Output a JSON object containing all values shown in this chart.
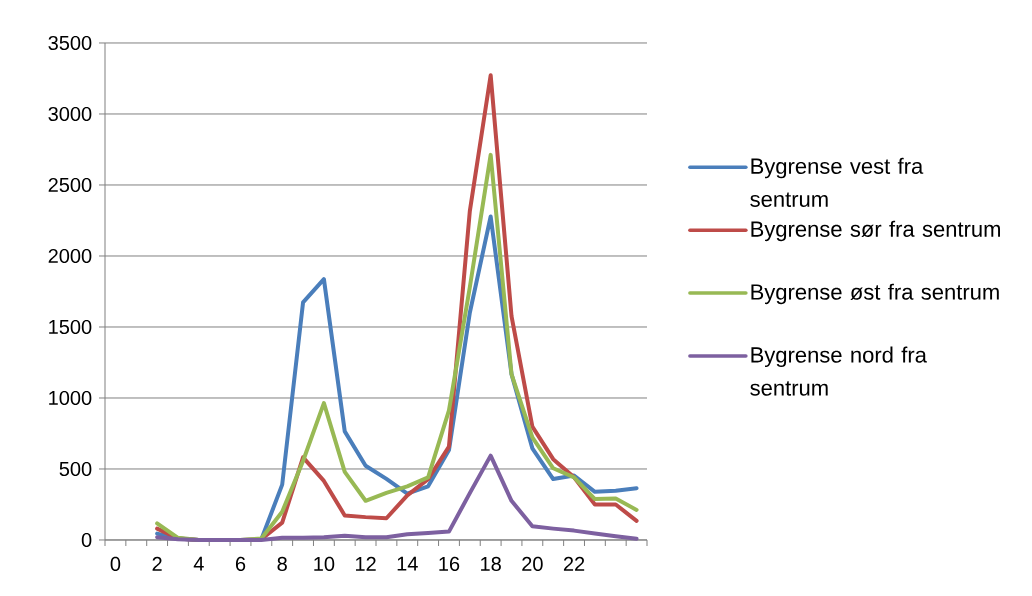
{
  "chart_data": {
    "type": "line",
    "categories": [
      "0",
      null,
      "2",
      null,
      "4",
      null,
      "6",
      null,
      "8",
      null,
      "10",
      null,
      "12",
      null,
      "14",
      null,
      "16",
      null,
      "18",
      null,
      "20",
      null,
      "22",
      null,
      null,
      null
    ],
    "ylim": [
      0,
      3500
    ],
    "yticks": [
      0,
      500,
      1000,
      1500,
      2000,
      2500,
      3000,
      3500
    ],
    "grid": "y",
    "legend": "right",
    "marker": "none",
    "line_style": "solid",
    "series": [
      {
        "name": "Bygrense vest fra sentrum",
        "color": "#4a7ebb",
        "values": [
          null,
          null,
          45,
          10,
          0,
          0,
          0,
          5,
          390,
          1673,
          1837,
          765,
          523,
          430,
          327,
          378,
          633,
          1600,
          2278,
          1168,
          645,
          429,
          454,
          339,
          347,
          365
        ]
      },
      {
        "name": "Bygrense sør fra sentrum",
        "color": "#be4b48",
        "values": [
          null,
          null,
          80,
          10,
          0,
          0,
          0,
          5,
          122,
          582,
          416,
          173,
          161,
          153,
          314,
          429,
          658,
          2316,
          3273,
          1577,
          798,
          569,
          441,
          250,
          250,
          135
        ]
      },
      {
        "name": "Bygrense øst fra sentrum",
        "color": "#98b954",
        "values": [
          null,
          null,
          117,
          15,
          0,
          0,
          0,
          10,
          199,
          556,
          964,
          480,
          276,
          332,
          378,
          441,
          913,
          1780,
          2712,
          1168,
          722,
          505,
          441,
          288,
          293,
          212
        ]
      },
      {
        "name": "Bygrense nord fra sentrum",
        "color": "#7d60a0",
        "values": [
          null,
          null,
          20,
          5,
          0,
          0,
          0,
          0,
          15,
          15,
          20,
          30,
          20,
          20,
          40,
          50,
          59,
          330,
          594,
          276,
          97,
          80,
          66,
          45,
          26,
          8
        ]
      }
    ]
  }
}
